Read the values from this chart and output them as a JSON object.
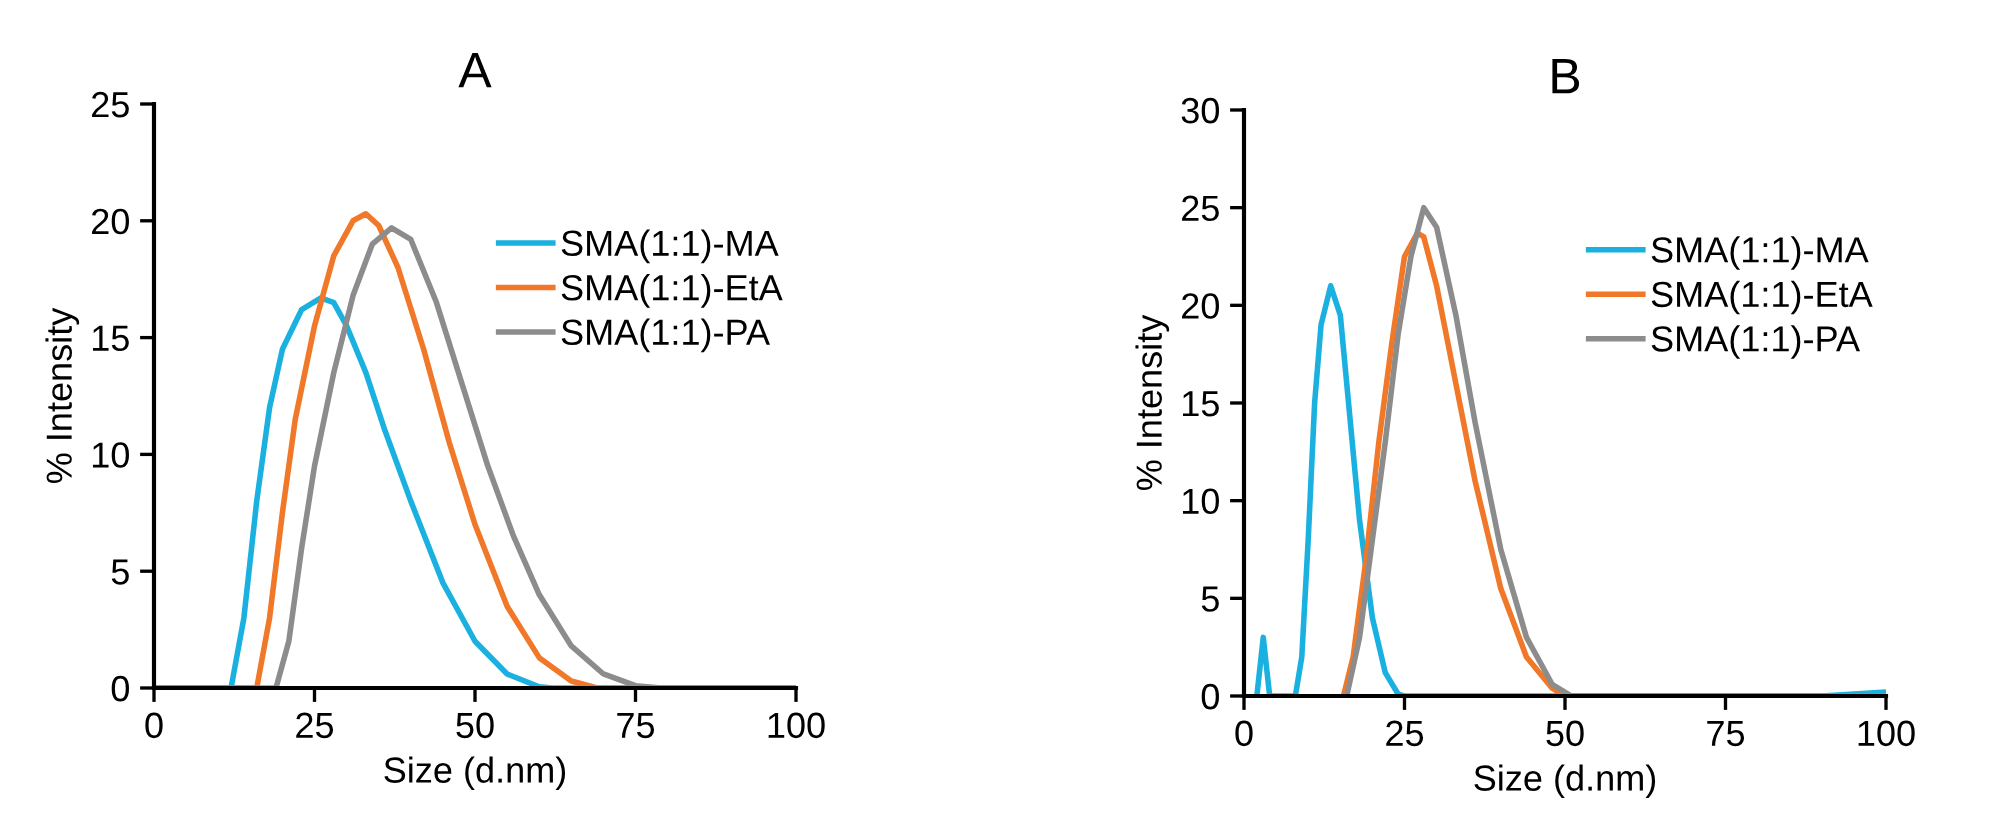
{
  "chart_data": [
    {
      "type": "line",
      "title": "A",
      "xlabel": "Size (d.nm)",
      "ylabel": "% Intensity",
      "xlim": [
        0,
        100
      ],
      "xticks": [
        0,
        25,
        50,
        75,
        100
      ],
      "ylim": [
        0,
        25
      ],
      "yticks": [
        0,
        5,
        10,
        15,
        20,
        25
      ],
      "grid": false,
      "legend": "right",
      "marker": "none",
      "line_style": "solid",
      "series": [
        {
          "name": "SMA(1:1)-MA",
          "color": "#1ab0e0",
          "x": [
            0,
            12,
            14,
            16,
            18,
            20,
            23,
            26,
            28,
            30,
            33,
            36,
            40,
            45,
            50,
            55,
            60,
            62,
            100
          ],
          "values": [
            0,
            0,
            3,
            8,
            12,
            14.5,
            16.2,
            16.7,
            16.5,
            15.5,
            13.5,
            11,
            8,
            4.5,
            2,
            0.6,
            0.05,
            0,
            0
          ]
        },
        {
          "name": "SMA(1:1)-EtA",
          "color": "#f07828",
          "x": [
            0,
            16,
            18,
            20,
            22,
            25,
            28,
            31,
            33,
            35,
            38,
            42,
            46,
            50,
            55,
            60,
            65,
            69,
            100
          ],
          "values": [
            0,
            0,
            3,
            7.5,
            11.5,
            15.5,
            18.5,
            20,
            20.3,
            19.8,
            18,
            14.5,
            10.5,
            7,
            3.5,
            1.3,
            0.3,
            0,
            0
          ]
        },
        {
          "name": "SMA(1:1)-PA",
          "color": "#8c8c8c",
          "x": [
            0,
            19,
            21,
            23,
            25,
            28,
            31,
            34,
            37,
            40,
            44,
            48,
            52,
            56,
            60,
            65,
            70,
            75,
            79,
            100
          ],
          "values": [
            0,
            0,
            2,
            6,
            9.5,
            13.5,
            16.8,
            19,
            19.7,
            19.2,
            16.5,
            13,
            9.5,
            6.5,
            4,
            1.8,
            0.6,
            0.1,
            0,
            0
          ]
        }
      ]
    },
    {
      "type": "line",
      "title": "B",
      "xlabel": "Size (d.nm)",
      "ylabel": "% Intensity",
      "xlim": [
        0,
        100
      ],
      "xticks": [
        0,
        25,
        50,
        75,
        100
      ],
      "ylim": [
        0,
        30
      ],
      "yticks": [
        0,
        5,
        10,
        15,
        20,
        25,
        30
      ],
      "grid": false,
      "legend": "right",
      "marker": "none",
      "line_style": "solid",
      "series": [
        {
          "name": "SMA(1:1)-MA",
          "color": "#1ab0e0",
          "x": [
            2,
            3,
            4,
            8,
            9,
            10,
            11,
            12,
            13.5,
            15,
            16,
            18,
            20,
            22,
            24,
            25,
            90,
            100
          ],
          "values": [
            0,
            3,
            0,
            0,
            2,
            8,
            15,
            19,
            21,
            19.5,
            16,
            9,
            4,
            1.2,
            0.1,
            0,
            0,
            0.2
          ]
        },
        {
          "name": "SMA(1:1)-EtA",
          "color": "#f07828",
          "x": [
            15.5,
            17,
            19,
            21,
            23,
            25,
            27,
            28,
            30,
            33,
            36,
            40,
            44,
            48,
            50,
            100
          ],
          "values": [
            0,
            2,
            7,
            13,
            18,
            22.5,
            23.7,
            23.5,
            21,
            16,
            11,
            5.5,
            2,
            0.4,
            0,
            0
          ]
        },
        {
          "name": "SMA(1:1)-PA",
          "color": "#8c8c8c",
          "x": [
            16,
            18,
            20,
            22,
            24,
            26,
            28,
            30,
            33,
            36,
            40,
            44,
            48,
            51,
            100
          ],
          "values": [
            0,
            3,
            8,
            13,
            18.5,
            22.5,
            25,
            24,
            19.5,
            14,
            7.5,
            3,
            0.6,
            0,
            0
          ]
        }
      ]
    }
  ]
}
